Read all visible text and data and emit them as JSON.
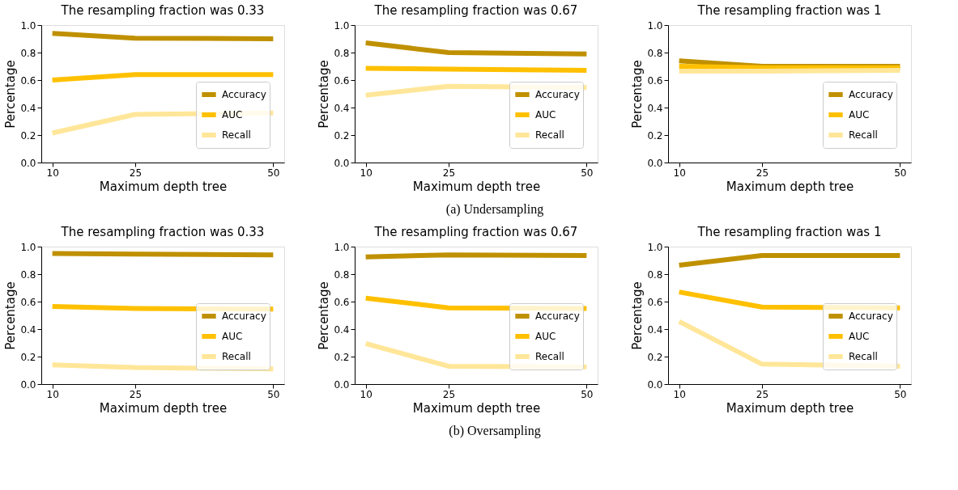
{
  "chart_data": [
    {
      "type": "line",
      "title": "The resampling fraction was 0.33",
      "xlabel": "Maximum depth tree",
      "ylabel": "Percentage",
      "x": [
        10,
        25,
        50
      ],
      "xlim": [
        8,
        52
      ],
      "xticks": [
        10,
        25,
        50
      ],
      "ylim": [
        0,
        1
      ],
      "yticks": [
        {
          "value": 0,
          "label": "0.0"
        },
        {
          "value": 0.2,
          "label": "0.2"
        },
        {
          "value": 0.4,
          "label": "0.4"
        },
        {
          "value": 0.6,
          "label": "0.6"
        },
        {
          "value": 0.8,
          "label": "0.8"
        },
        {
          "value": 1,
          "label": "1.0"
        }
      ],
      "legend": "bottom right",
      "annotations": [
        "(a) Undersampling"
      ],
      "series": [
        {
          "name": "Accuracy",
          "color": "#bf9000",
          "values": [
            0.94,
            0.905,
            0.9
          ]
        },
        {
          "name": "AUC",
          "color": "#ffc000",
          "values": [
            0.6,
            0.64,
            0.64
          ]
        },
        {
          "name": "Recall",
          "color": "#ffe699",
          "values": [
            0.215,
            0.35,
            0.36
          ]
        }
      ]
    },
    {
      "type": "line",
      "title": "The resampling fraction was 0.67",
      "xlabel": "Maximum depth tree",
      "ylabel": "Percentage",
      "x": [
        10,
        25,
        50
      ],
      "xlim": [
        8,
        52
      ],
      "xticks": [
        10,
        25,
        50
      ],
      "ylim": [
        0,
        1
      ],
      "yticks": [
        {
          "value": 0,
          "label": "0.0"
        },
        {
          "value": 0.2,
          "label": "0.2"
        },
        {
          "value": 0.4,
          "label": "0.4"
        },
        {
          "value": 0.6,
          "label": "0.6"
        },
        {
          "value": 0.8,
          "label": "0.8"
        },
        {
          "value": 1,
          "label": "1.0"
        }
      ],
      "legend": "bottom right",
      "series": [
        {
          "name": "Accuracy",
          "color": "#bf9000",
          "values": [
            0.87,
            0.8,
            0.79
          ]
        },
        {
          "name": "AUC",
          "color": "#ffc000",
          "values": [
            0.685,
            0.68,
            0.67
          ]
        },
        {
          "name": "Recall",
          "color": "#ffe699",
          "values": [
            0.49,
            0.555,
            0.545
          ]
        }
      ]
    },
    {
      "type": "line",
      "title": "The resampling fraction was 1",
      "xlabel": "Maximum depth tree",
      "ylabel": "Percentage",
      "x": [
        10,
        25,
        50
      ],
      "xlim": [
        8,
        52
      ],
      "xticks": [
        10,
        25,
        50
      ],
      "ylim": [
        0,
        1
      ],
      "yticks": [
        {
          "value": 0,
          "label": "0.0"
        },
        {
          "value": 0.2,
          "label": "0.2"
        },
        {
          "value": 0.4,
          "label": "0.4"
        },
        {
          "value": 0.6,
          "label": "0.6"
        },
        {
          "value": 0.8,
          "label": "0.8"
        },
        {
          "value": 1,
          "label": "1.0"
        }
      ],
      "legend": "bottom right",
      "series": [
        {
          "name": "Accuracy",
          "color": "#bf9000",
          "values": [
            0.74,
            0.7,
            0.7
          ]
        },
        {
          "name": "AUC",
          "color": "#ffc000",
          "values": [
            0.7,
            0.69,
            0.69
          ]
        },
        {
          "name": "Recall",
          "color": "#ffe699",
          "values": [
            0.665,
            0.665,
            0.67
          ]
        }
      ]
    },
    {
      "type": "line",
      "title": "The resampling fraction was 0.33",
      "xlabel": "Maximum depth tree",
      "ylabel": "Percentage",
      "x": [
        10,
        25,
        50
      ],
      "xlim": [
        8,
        52
      ],
      "xticks": [
        10,
        25,
        50
      ],
      "ylim": [
        0,
        1
      ],
      "yticks": [
        {
          "value": 0,
          "label": "0.0"
        },
        {
          "value": 0.2,
          "label": "0.2"
        },
        {
          "value": 0.4,
          "label": "0.4"
        },
        {
          "value": 0.6,
          "label": "0.6"
        },
        {
          "value": 0.8,
          "label": "0.8"
        },
        {
          "value": 1,
          "label": "1.0"
        }
      ],
      "legend": "bottom right",
      "annotations": [
        "(b) Oversampling"
      ],
      "series": [
        {
          "name": "Accuracy",
          "color": "#bf9000",
          "values": [
            0.95,
            0.945,
            0.94
          ]
        },
        {
          "name": "AUC",
          "color": "#ffc000",
          "values": [
            0.565,
            0.55,
            0.545
          ]
        },
        {
          "name": "Recall",
          "color": "#ffe699",
          "values": [
            0.14,
            0.12,
            0.11
          ]
        }
      ]
    },
    {
      "type": "line",
      "title": "The resampling fraction was 0.67",
      "xlabel": "Maximum depth tree",
      "ylabel": "Percentage",
      "x": [
        10,
        25,
        50
      ],
      "xlim": [
        8,
        52
      ],
      "xticks": [
        10,
        25,
        50
      ],
      "ylim": [
        0,
        1
      ],
      "yticks": [
        {
          "value": 0,
          "label": "0.0"
        },
        {
          "value": 0.2,
          "label": "0.2"
        },
        {
          "value": 0.4,
          "label": "0.4"
        },
        {
          "value": 0.6,
          "label": "0.6"
        },
        {
          "value": 0.8,
          "label": "0.8"
        },
        {
          "value": 1,
          "label": "1.0"
        }
      ],
      "legend": "bottom right",
      "series": [
        {
          "name": "Accuracy",
          "color": "#bf9000",
          "values": [
            0.925,
            0.94,
            0.935
          ]
        },
        {
          "name": "AUC",
          "color": "#ffc000",
          "values": [
            0.625,
            0.555,
            0.55
          ]
        },
        {
          "name": "Recall",
          "color": "#ffe699",
          "values": [
            0.295,
            0.13,
            0.125
          ]
        }
      ]
    },
    {
      "type": "line",
      "title": "The resampling fraction was 1",
      "xlabel": "Maximum depth tree",
      "ylabel": "Percentage",
      "x": [
        10,
        25,
        50
      ],
      "xlim": [
        8,
        52
      ],
      "xticks": [
        10,
        25,
        50
      ],
      "ylim": [
        0,
        1
      ],
      "yticks": [
        {
          "value": 0,
          "label": "0.0"
        },
        {
          "value": 0.2,
          "label": "0.2"
        },
        {
          "value": 0.4,
          "label": "0.4"
        },
        {
          "value": 0.6,
          "label": "0.6"
        },
        {
          "value": 0.8,
          "label": "0.8"
        },
        {
          "value": 1,
          "label": "1.0"
        }
      ],
      "legend": "bottom right",
      "series": [
        {
          "name": "Accuracy",
          "color": "#bf9000",
          "values": [
            0.865,
            0.935,
            0.935
          ]
        },
        {
          "name": "AUC",
          "color": "#ffc000",
          "values": [
            0.67,
            0.56,
            0.555
          ]
        },
        {
          "name": "Recall",
          "color": "#ffe699",
          "values": [
            0.455,
            0.145,
            0.13
          ]
        }
      ]
    }
  ]
}
